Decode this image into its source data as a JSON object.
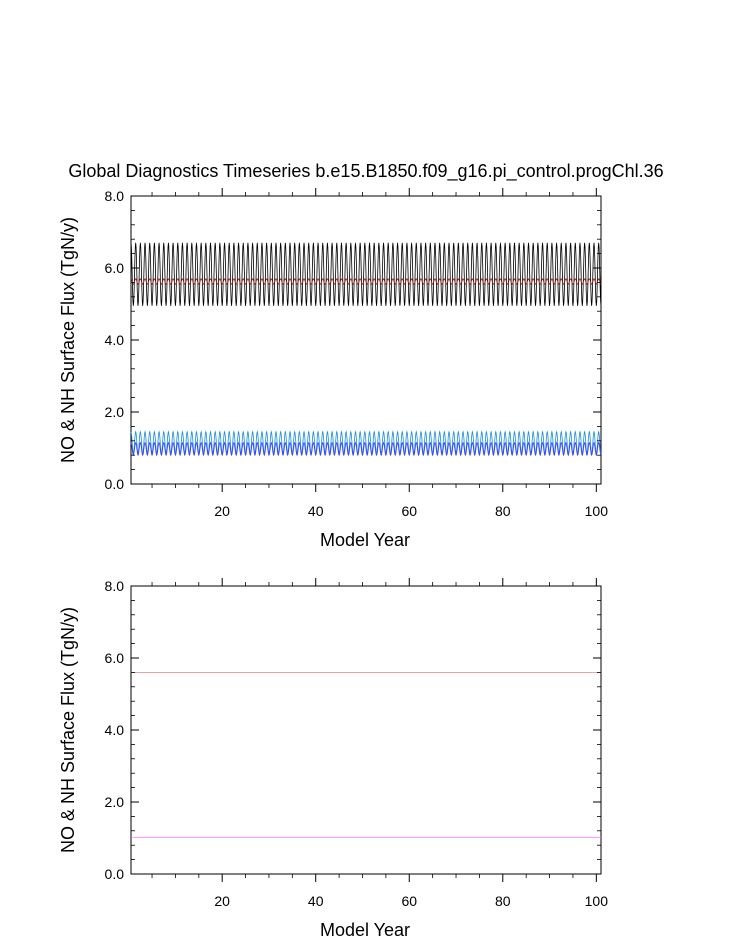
{
  "title": "Global Diagnostics Timeseries b.e15.B1850.f09_g16.pi_control.progChl.36",
  "chart_data": [
    {
      "type": "line",
      "xlabel": "Model Year",
      "ylabel": "NO & NH Surface Flux (TgN/y)",
      "xlim": [
        0.5,
        101
      ],
      "ylim": [
        0,
        8
      ],
      "xticks": [
        20,
        40,
        60,
        80,
        100
      ],
      "yticks": [
        0,
        2,
        4,
        6,
        8
      ],
      "ytick_labels": [
        "0.0",
        "2.0",
        "4.0",
        "6.0",
        "8.0"
      ],
      "monthly_cycle": true,
      "series": [
        {
          "color": "#000000",
          "start_year": 0.5,
          "end_year": 101,
          "min": 4.95,
          "max": 6.7
        },
        {
          "color": "#8b1a1a",
          "start_year": 0.5,
          "end_year": 101,
          "min": 5.55,
          "max": 5.7
        },
        {
          "color": "#1b8fd6",
          "start_year": 0.5,
          "end_year": 101,
          "min": 0.85,
          "max": 1.45
        },
        {
          "color": "#3b3bff",
          "start_year": 0.5,
          "end_year": 101,
          "min": 0.8,
          "max": 1.15
        }
      ]
    },
    {
      "type": "line",
      "xlabel": "Model Year",
      "ylabel": "NO & NH Surface Flux (TgN/y)",
      "xlim": [
        0.5,
        101
      ],
      "ylim": [
        0,
        8
      ],
      "xticks": [
        20,
        40,
        60,
        80,
        100
      ],
      "yticks": [
        0,
        2,
        4,
        6,
        8
      ],
      "ytick_labels": [
        "0.0",
        "2.0",
        "4.0",
        "6.0",
        "8.0"
      ],
      "series": [
        {
          "color": "#d98c8c",
          "x": [
            0.5,
            101
          ],
          "values": [
            5.6,
            5.6
          ]
        },
        {
          "color": "#ff66ff",
          "x": [
            0.5,
            101
          ],
          "values": [
            1.02,
            1.02
          ]
        }
      ]
    }
  ]
}
